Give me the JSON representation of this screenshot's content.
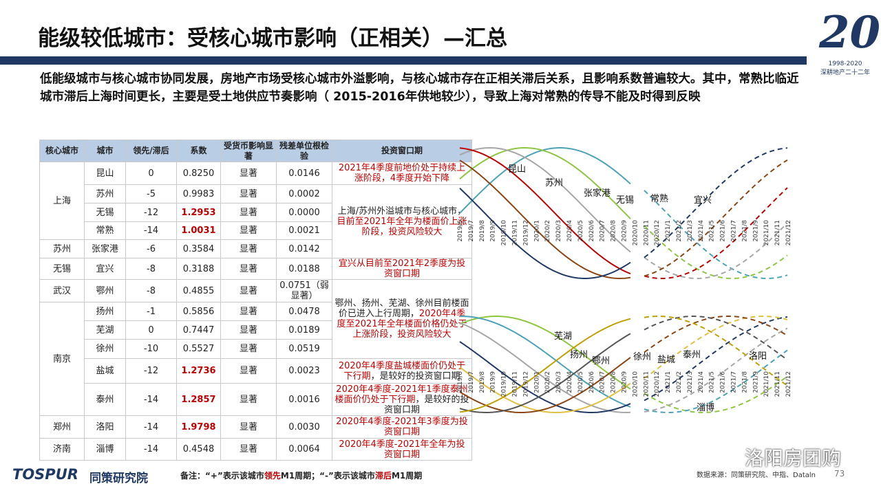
{
  "header": {
    "title": "能级较低城市：受核心城市影响（正相关）—汇总"
  },
  "logo": {
    "mark": "20",
    "years": "1998-2020",
    "slogan": "深耕地产二十二年"
  },
  "summary": "低能级城市与核心城市协同发展，房地产市场受核心城市外溢影响，与核心城市存在正相关滞后关系，且影响系数普遍较大。其中，常熟比临近城市滞后上海时间更长，主要是受土地供应节奏影响（ 2015-2016年供地较少），导致上海对常熟的传导不能及时得到反映",
  "table": {
    "columns": [
      "核心城市",
      "城市",
      "领先/滞后",
      "系数",
      "受货币影响显著",
      "残差单位根检验",
      "投资窗口期"
    ],
    "emphasis_color": "#c00000",
    "core_cities": [
      "上海",
      "苏州",
      "无锡",
      "武汉",
      "南京",
      "郑州",
      "济南"
    ],
    "rows": [
      {
        "city": "昆山",
        "lead": 0,
        "coef": "0.8250",
        "money": "显著",
        "residual": "0.0146",
        "emphasis": false
      },
      {
        "city": "苏州",
        "lead": -5,
        "coef": "0.9983",
        "money": "显著",
        "residual": "0.0002",
        "emphasis": false
      },
      {
        "city": "无锡",
        "lead": -12,
        "coef": "1.2953",
        "money": "显著",
        "residual": "0.0000",
        "emphasis": true
      },
      {
        "city": "常熟",
        "lead": -14,
        "coef": "1.0031",
        "money": "显著",
        "residual": "0.0021",
        "emphasis": true
      },
      {
        "city": "张家港",
        "lead": -6,
        "coef": "0.3584",
        "money": "显著",
        "residual": "0.0142",
        "emphasis": false
      },
      {
        "city": "宜兴",
        "lead": -8,
        "coef": "0.3188",
        "money": "显著",
        "residual": "0.0188",
        "emphasis": false
      },
      {
        "city": "鄂州",
        "lead": -8,
        "coef": "0.4855",
        "money": "显著",
        "residual": "0.0751（弱显著）",
        "emphasis": false
      },
      {
        "city": "扬州",
        "lead": -1,
        "coef": "0.5856",
        "money": "显著",
        "residual": "0.0478",
        "emphasis": false
      },
      {
        "city": "芜湖",
        "lead": 0,
        "coef": "0.7447",
        "money": "显著",
        "residual": "0.0189",
        "emphasis": false
      },
      {
        "city": "徐州",
        "lead": -10,
        "coef": "0.5527",
        "money": "显著",
        "residual": "0.0519",
        "emphasis": false
      },
      {
        "city": "盐城",
        "lead": -12,
        "coef": "1.2736",
        "money": "显著",
        "residual": "0.0023",
        "emphasis": true
      },
      {
        "city": "泰州",
        "lead": -14,
        "coef": "1.2857",
        "money": "显著",
        "residual": "0.0016",
        "emphasis": true
      },
      {
        "city": "洛阳",
        "lead": -14,
        "coef": "1.9798",
        "money": "显著",
        "residual": "0.0030",
        "emphasis": true
      },
      {
        "city": "淄博",
        "lead": -14,
        "coef": "0.4548",
        "money": "显著",
        "residual": "0.0064",
        "emphasis": false
      }
    ],
    "windows": [
      [
        {
          "text": "2021年4季度前地价处于持续上涨阶段，4季度开始下降",
          "color": "#c00000"
        }
      ],
      [
        {
          "text": "上海/苏州外溢城市与核心城市，",
          "color": "#222222"
        },
        {
          "text": "目前至2021年全年为楼面价上涨阶段，投资风险较大",
          "color": "#c00000"
        }
      ],
      [
        {
          "text": "宜兴从目前至2021年2季度为投资窗口期",
          "color": "#c00000"
        }
      ],
      [
        {
          "text": "鄂州、扬州、芜湖、徐州目前楼面价已进入上行周期，",
          "color": "#222222"
        },
        {
          "text": "2020年4季度至2021年全年楼面价格仍处于上涨阶段，投资风险较大",
          "color": "#c00000"
        }
      ],
      [
        {
          "text": "2020年4季度盐城楼面价仍处于下行期",
          "color": "#c00000"
        },
        {
          "text": "，是较好的投资窗口期",
          "color": "#222222"
        }
      ],
      [
        {
          "text": "2020年4季度-2021年1季度泰州楼面价仍处于下行期",
          "color": "#c00000"
        },
        {
          "text": "，是较好的投资窗口期",
          "color": "#222222"
        }
      ],
      [
        {
          "text": "2020年4季度-2021年3季度为投资窗口期",
          "color": "#c00000"
        }
      ],
      [
        {
          "text": "2020年4季度-2021年全年为投资窗口期",
          "color": "#c00000"
        }
      ]
    ]
  },
  "months": [
    "2019/6",
    "2019/7",
    "2019/8",
    "2019/9",
    "2019/10",
    "2019/11",
    "2019/12",
    "2020/1",
    "2020/2",
    "2020/3",
    "2020/4",
    "2020/5",
    "2020/6",
    "2020/7",
    "2020/8",
    "2020/9",
    "2020/10",
    "2020/11",
    "2020/12",
    "2021/1",
    "2021/2",
    "2021/3",
    "2021/4",
    "2021/5",
    "2021/6",
    "2021/7",
    "2021/8",
    "2021/9",
    "2021/10",
    "2021/11",
    "2021/12"
  ],
  "charts": [
    {
      "labels": [
        "昆山",
        "苏州",
        "张家港",
        "无锡",
        "常熟",
        "宜兴"
      ]
    },
    {
      "labels": [
        "芜湖",
        "扬州",
        "鄂州",
        "徐州",
        "盐城",
        "泰州",
        "洛阳",
        "淄博"
      ]
    }
  ],
  "footer": {
    "brand": "TOSPUR",
    "institute": "同策研究院",
    "note": [
      {
        "text": "备注：",
        "color": "#222222"
      },
      {
        "text": "“+”表示该城市",
        "color": "#222222"
      },
      {
        "text": "领先",
        "color": "#c00000"
      },
      {
        "text": "M1周期；",
        "color": "#222222"
      },
      {
        "text": "“-”表示该城市",
        "color": "#222222"
      },
      {
        "text": "滞后",
        "color": "#c00000"
      },
      {
        "text": "M1周期",
        "color": "#222222"
      }
    ],
    "source": "数据来源：同策研究院、中指、Dataln",
    "page": "73",
    "watermark": "洛阳房团购"
  }
}
